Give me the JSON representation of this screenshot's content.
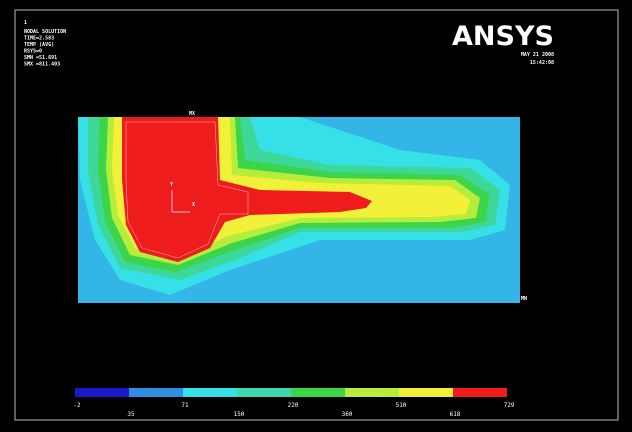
{
  "window": {
    "corner_number": "1",
    "info_lines": [
      "NODAL SOLUTION",
      "TIME=2.583",
      "TEMP     (AVG)",
      "RSYS=0",
      "SMN =51.691",
      "SMX =811.403"
    ],
    "logo": "ANSYS",
    "date": "MAY 21 2008",
    "time": "15:42:08",
    "max_label": "MX",
    "min_label": "MN",
    "axis_y": "Y",
    "axis_x": "X",
    "legend_labels": [
      "-2",
      "35",
      "71",
      "150",
      "220",
      "360",
      "510",
      "618",
      "729"
    ]
  }
}
